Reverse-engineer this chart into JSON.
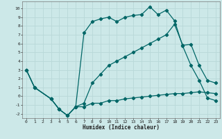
{
  "xlabel": "Humidex (Indice chaleur)",
  "bg_color": "#cce8e8",
  "grid_color": "#b8d8d8",
  "line_color": "#006666",
  "xlim": [
    -0.5,
    23.5
  ],
  "ylim": [
    -2.5,
    10.8
  ],
  "xticks": [
    0,
    1,
    2,
    3,
    4,
    5,
    6,
    7,
    8,
    9,
    10,
    11,
    12,
    13,
    14,
    15,
    16,
    17,
    18,
    19,
    20,
    21,
    22,
    23
  ],
  "yticks": [
    -2,
    -1,
    0,
    1,
    2,
    3,
    4,
    5,
    6,
    7,
    8,
    9,
    10
  ],
  "curve1_x": [
    0,
    1,
    3,
    4,
    5,
    6,
    7,
    8,
    9,
    10,
    11,
    12,
    13,
    14,
    15,
    16,
    17,
    18,
    19,
    20,
    21,
    22,
    23
  ],
  "curve1_y": [
    3,
    1,
    -0.3,
    -1.5,
    -2.2,
    -1.2,
    7.2,
    8.5,
    8.8,
    9.0,
    8.5,
    9.0,
    9.2,
    9.3,
    10.2,
    9.3,
    9.8,
    8.6,
    5.7,
    3.5,
    1.8,
    -0.2,
    -0.5
  ],
  "curve2_x": [
    0,
    1,
    3,
    4,
    5,
    6,
    7,
    8,
    9,
    10,
    11,
    12,
    13,
    14,
    15,
    16,
    17,
    18,
    19,
    20,
    21,
    22,
    23
  ],
  "curve2_y": [
    3,
    1,
    -0.3,
    -1.5,
    -2.2,
    -1.2,
    -1.2,
    -0.8,
    -0.8,
    -0.5,
    -0.5,
    -0.3,
    -0.2,
    -0.1,
    0.0,
    0.1,
    0.2,
    0.3,
    0.3,
    0.4,
    0.5,
    0.4,
    0.3
  ],
  "curve3_x": [
    0,
    1,
    3,
    4,
    5,
    6,
    7,
    8,
    9,
    10,
    11,
    12,
    13,
    14,
    15,
    16,
    17,
    18,
    19,
    20,
    21,
    22,
    23
  ],
  "curve3_y": [
    3,
    1,
    -0.3,
    -1.5,
    -2.2,
    -1.2,
    -0.8,
    1.5,
    2.5,
    3.5,
    4.0,
    4.5,
    5.0,
    5.5,
    6.0,
    6.5,
    7.0,
    8.2,
    5.8,
    5.9,
    3.5,
    1.8,
    1.5
  ]
}
